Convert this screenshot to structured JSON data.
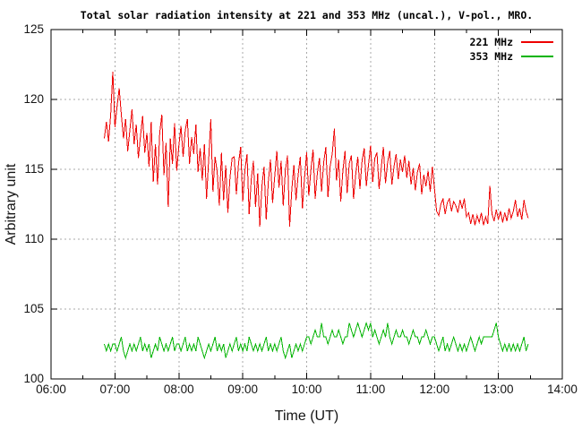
{
  "title": "Total solar radiation intensity at 221 and 353 MHz (uncal.), V-pol., MRO.",
  "axes": {
    "x": {
      "label": "Time (UT)",
      "ticks": [
        {
          "label": "06:00",
          "hour": 6
        },
        {
          "label": "07:00",
          "hour": 7
        },
        {
          "label": "08:00",
          "hour": 8
        },
        {
          "label": "09:00",
          "hour": 9
        },
        {
          "label": "10:00",
          "hour": 10
        },
        {
          "label": "11:00",
          "hour": 11
        },
        {
          "label": "12:00",
          "hour": 12
        },
        {
          "label": "13:00",
          "hour": 13
        },
        {
          "label": "14:00",
          "hour": 14
        }
      ],
      "minor_tick_step_hours": 0.5,
      "range_hours": [
        6,
        14
      ]
    },
    "y": {
      "label": "Arbitrary unit",
      "ticks": [
        {
          "label": "100",
          "value": 100
        },
        {
          "label": "105",
          "value": 105
        },
        {
          "label": "110",
          "value": 110
        },
        {
          "label": "115",
          "value": 115
        },
        {
          "label": "120",
          "value": 120
        },
        {
          "label": "125",
          "value": 125
        }
      ],
      "range": [
        100,
        125
      ]
    }
  },
  "legend": {
    "position": "top-right-inside",
    "entries": [
      {
        "label": "221 MHz",
        "color": "#ee0000"
      },
      {
        "label": "353 MHz",
        "color": "#00b400"
      }
    ]
  },
  "colors": {
    "background": "#ffffff",
    "border": "#000000",
    "grid": "#a8a8a8",
    "tick_text": "#141414"
  },
  "chart_data": {
    "type": "line",
    "title": "Total solar radiation intensity at 221 and 353 MHz (uncal.), V-pol., MRO.",
    "xlabel": "Time (UT)",
    "ylabel": "Arbitrary unit",
    "xlim_hours": [
      6,
      14
    ],
    "ylim": [
      100,
      125
    ],
    "grid": true,
    "x_time_start": "06:50",
    "x_time_end": "13:28",
    "x_step_minutes": 2,
    "n_points": 200,
    "series": [
      {
        "name": "221 MHz",
        "color": "#ee0000",
        "values": [
          117.2,
          118.4,
          117.0,
          118.9,
          122.0,
          118.0,
          119.5,
          120.8,
          118.9,
          117.2,
          118.6,
          116.3,
          117.8,
          119.3,
          116.8,
          118.2,
          115.8,
          117.4,
          118.8,
          116.2,
          117.6,
          115.2,
          118.4,
          114.1,
          116.8,
          113.9,
          117.6,
          118.9,
          114.6,
          116.9,
          112.3,
          117.2,
          115.4,
          118.3,
          114.9,
          116.7,
          118.1,
          115.9,
          117.8,
          118.6,
          115.4,
          117.3,
          116.1,
          118.2,
          114.8,
          116.5,
          114.2,
          116.8,
          112.9,
          115.7,
          118.6,
          113.4,
          115.9,
          114.8,
          112.4,
          116.2,
          112.8,
          115.3,
          111.9,
          114.4,
          115.8,
          115.9,
          113.2,
          115.4,
          116.6,
          112.7,
          114.9,
          116.1,
          111.8,
          114.3,
          115.6,
          112.3,
          114.7,
          110.9,
          113.8,
          115.2,
          111.4,
          114.1,
          115.7,
          112.6,
          114.5,
          116.3,
          113.7,
          115.6,
          112.4,
          114.9,
          116.0,
          110.9,
          113.5,
          115.3,
          112.8,
          114.6,
          115.9,
          112.2,
          114.4,
          116.2,
          113.1,
          115.0,
          116.4,
          112.9,
          114.7,
          115.8,
          113.4,
          115.5,
          116.6,
          113.0,
          115.2,
          116.1,
          117.9,
          114.2,
          115.7,
          112.7,
          114.9,
          116.3,
          113.3,
          115.4,
          116.0,
          112.9,
          114.6,
          115.9,
          113.6,
          115.6,
          116.5,
          113.8,
          115.3,
          116.7,
          114.1,
          115.8,
          116.2,
          113.6,
          115.1,
          116.6,
          114.0,
          115.5,
          116.3,
          113.9,
          115.2,
          116.1,
          114.3,
          115.7,
          114.8,
          116.0,
          114.4,
          115.6,
          113.9,
          115.1,
          113.5,
          114.8,
          115.4,
          113.2,
          114.6,
          113.8,
          114.9,
          113.4,
          115.2,
          113.6,
          112.0,
          111.7,
          112.5,
          112.9,
          111.8,
          112.6,
          112.9,
          112.0,
          112.7,
          112.4,
          111.9,
          112.8,
          112.2,
          112.9,
          111.6,
          111.9,
          111.1,
          111.8,
          111.0,
          111.7,
          111.2,
          111.9,
          111.0,
          111.6,
          111.1,
          113.8,
          111.8,
          111.3,
          112.1,
          111.4,
          112.0,
          111.2,
          111.9,
          111.3,
          112.2,
          111.5,
          112.0,
          112.8,
          111.6,
          112.2,
          111.4,
          112.8,
          112.0,
          111.5
        ]
      },
      {
        "name": "353 MHz",
        "color": "#00b400",
        "values": [
          102.5,
          102.0,
          102.5,
          102.0,
          102.5,
          102.5,
          102.0,
          102.5,
          103.0,
          102.0,
          101.5,
          102.0,
          102.5,
          102.0,
          102.5,
          102.0,
          102.5,
          103.0,
          102.0,
          102.5,
          102.0,
          102.5,
          101.5,
          102.0,
          102.5,
          102.0,
          103.0,
          102.5,
          102.0,
          102.5,
          102.0,
          102.5,
          103.0,
          102.0,
          102.5,
          102.5,
          102.0,
          102.5,
          103.0,
          102.0,
          102.5,
          102.0,
          102.5,
          102.0,
          103.0,
          102.5,
          102.0,
          101.5,
          102.0,
          102.5,
          102.0,
          102.5,
          103.0,
          102.0,
          102.5,
          102.0,
          102.5,
          101.5,
          102.0,
          102.5,
          102.0,
          102.5,
          103.0,
          102.0,
          102.5,
          102.0,
          102.5,
          102.0,
          103.0,
          102.5,
          102.0,
          102.5,
          102.0,
          102.5,
          102.0,
          102.5,
          103.0,
          102.0,
          102.5,
          102.0,
          102.5,
          102.0,
          102.5,
          103.0,
          102.0,
          101.5,
          102.0,
          102.5,
          101.5,
          102.0,
          102.5,
          102.0,
          102.5,
          102.0,
          102.5,
          103.0,
          103.0,
          102.5,
          103.0,
          103.5,
          103.0,
          103.0,
          104.0,
          103.0,
          103.0,
          102.5,
          103.0,
          103.5,
          103.0,
          103.0,
          103.5,
          103.0,
          102.5,
          103.0,
          103.0,
          104.0,
          103.5,
          103.0,
          103.5,
          104.0,
          103.5,
          103.0,
          103.5,
          104.0,
          103.5,
          104.0,
          103.0,
          103.5,
          103.0,
          102.5,
          103.0,
          103.5,
          103.0,
          104.0,
          103.0,
          102.5,
          103.0,
          103.5,
          103.0,
          103.0,
          103.5,
          103.0,
          103.0,
          102.5,
          103.0,
          103.5,
          103.0,
          103.0,
          102.5,
          103.0,
          103.0,
          103.5,
          103.0,
          102.5,
          103.0,
          103.0,
          102.5,
          102.0,
          102.5,
          103.0,
          102.0,
          102.5,
          102.0,
          102.5,
          103.0,
          102.5,
          102.0,
          102.5,
          102.0,
          102.5,
          102.0,
          102.5,
          103.0,
          102.5,
          102.0,
          102.5,
          103.0,
          102.5,
          103.0,
          103.0,
          103.0,
          103.0,
          103.0,
          103.5,
          104.0,
          103.0,
          102.5,
          102.0,
          102.5,
          102.0,
          102.5,
          102.0,
          102.5,
          102.0,
          102.5,
          102.0,
          102.5,
          103.0,
          102.0,
          102.5
        ]
      }
    ]
  }
}
